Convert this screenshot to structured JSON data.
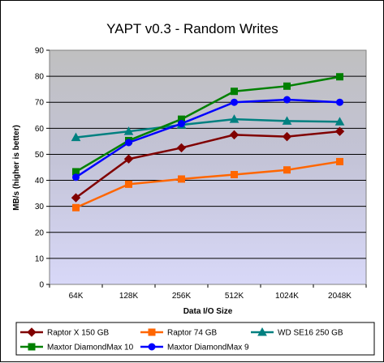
{
  "chart_data": {
    "type": "line",
    "title": "YAPT v0.3 - Random Writes",
    "xlabel": "Data I/O Size",
    "ylabel": "MB/s (higher is better)",
    "ylim": [
      0,
      90
    ],
    "yticks": [
      0,
      10,
      20,
      30,
      40,
      50,
      60,
      70,
      80,
      90
    ],
    "categories": [
      "64K",
      "128K",
      "256K",
      "512K",
      "1024K",
      "2048K"
    ],
    "grid": true,
    "legend_position": "bottom",
    "series": [
      {
        "name": "Raptor X 150 GB",
        "color": "#800000",
        "marker": "diamond",
        "values": [
          33.3,
          48.2,
          52.5,
          57.5,
          56.8,
          58.8
        ]
      },
      {
        "name": "Raptor 74 GB",
        "color": "#ff6600",
        "marker": "square",
        "values": [
          29.5,
          38.5,
          40.5,
          42.2,
          44.0,
          47.2
        ]
      },
      {
        "name": "WD SE16 250 GB",
        "color": "#008080",
        "marker": "triangle",
        "values": [
          56.5,
          58.8,
          61.3,
          63.5,
          62.8,
          62.5
        ]
      },
      {
        "name": "Maxtor DiamondMax 10",
        "color": "#008000",
        "marker": "square",
        "values": [
          43.3,
          55.3,
          63.5,
          74.2,
          76.2,
          79.8
        ]
      },
      {
        "name": "Maxtor DiamondMax 9",
        "color": "#0000ff",
        "marker": "circle",
        "values": [
          41.2,
          54.5,
          61.8,
          70.0,
          71.0,
          70.0
        ]
      }
    ]
  }
}
